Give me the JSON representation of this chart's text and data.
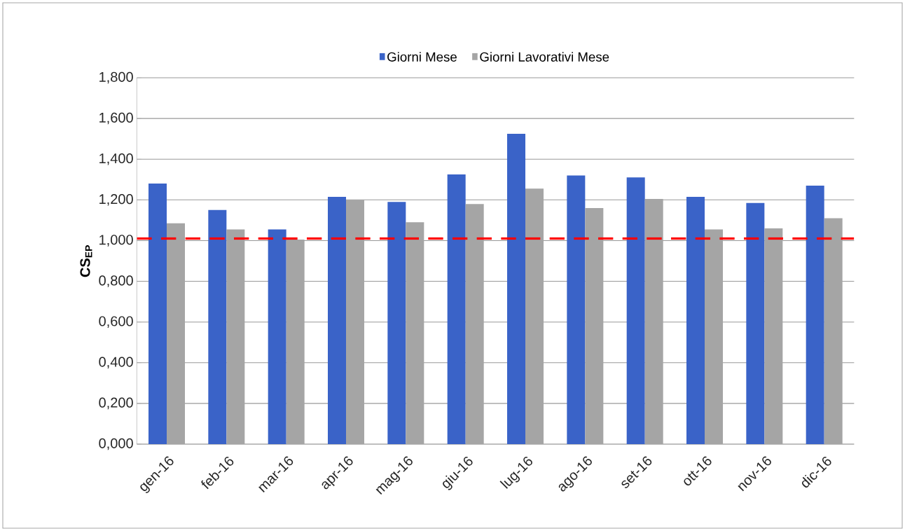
{
  "chart_data": {
    "type": "bar",
    "ylabel": "CS$_{EP}$",
    "categories": [
      "gen-16",
      "feb-16",
      "mar-16",
      "apr-16",
      "mag-16",
      "giu-16",
      "lug-16",
      "ago-16",
      "set-16",
      "ott-16",
      "nov-16",
      "dic-16"
    ],
    "series": [
      {
        "name": "Giorni Mese",
        "color": "#3a63c8",
        "values": [
          1.28,
          1.15,
          1.055,
          1.215,
          1.19,
          1.325,
          1.525,
          1.32,
          1.31,
          1.215,
          1.185,
          1.27
        ]
      },
      {
        "name": "Giorni Lavorativi Mese",
        "color": "#a5a5a5",
        "values": [
          1.085,
          1.055,
          1.005,
          1.2,
          1.09,
          1.18,
          1.255,
          1.16,
          1.205,
          1.055,
          1.06,
          1.11
        ]
      }
    ],
    "ylim": [
      0,
      1.8
    ],
    "yticks": [
      {
        "value": 0,
        "label": "0,000"
      },
      {
        "value": 0.2,
        "label": "0,200"
      },
      {
        "value": 0.4,
        "label": "0,400"
      },
      {
        "value": 0.6,
        "label": "0,600"
      },
      {
        "value": 0.8,
        "label": "0,800"
      },
      {
        "value": 1.0,
        "label": "1,000"
      },
      {
        "value": 1.2,
        "label": "1,200"
      },
      {
        "value": 1.4,
        "label": "1,400"
      },
      {
        "value": 1.6,
        "label": "1,600"
      },
      {
        "value": 1.8,
        "label": "1,800"
      }
    ],
    "ref_lines": [
      {
        "axis": "y",
        "value": 1.01,
        "color": "#ff0000",
        "line_style": "dashed"
      }
    ],
    "grid": "y",
    "legend": "top"
  }
}
